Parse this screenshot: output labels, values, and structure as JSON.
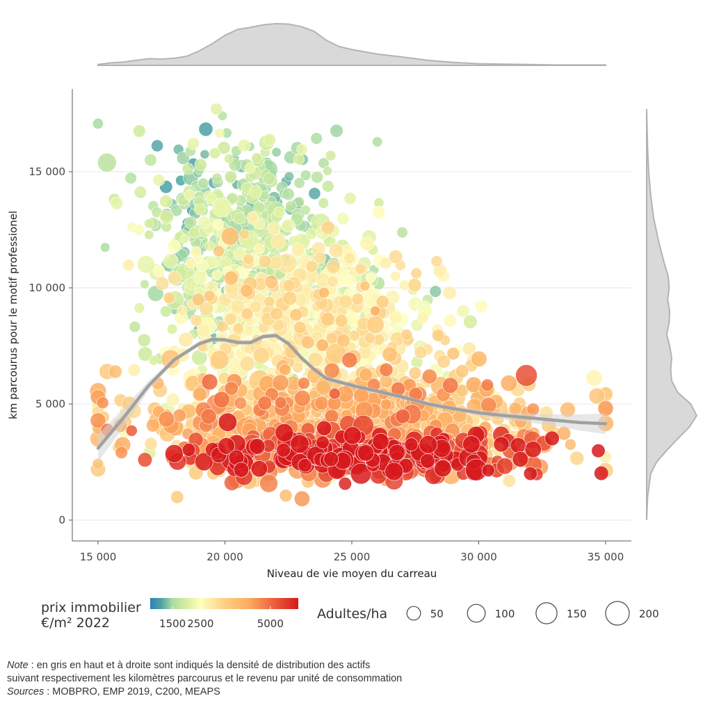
{
  "chart_data": {
    "type": "scatter",
    "xlabel": "Niveau de vie moyen du carreau",
    "ylabel": "km parcourus pour le motif professionel",
    "xlim": [
      14000,
      36000
    ],
    "ylim": [
      -900,
      18500
    ],
    "x_ticks": [
      15000,
      20000,
      25000,
      30000,
      35000
    ],
    "x_tick_labels": [
      "15 000",
      "20 000",
      "25 000",
      "30 000",
      "35 000"
    ],
    "y_ticks": [
      0,
      5000,
      10000,
      15000
    ],
    "y_tick_labels": [
      "0",
      "5 000",
      "10 000",
      "15 000"
    ],
    "grid": "horizontal",
    "point_distribution": [
      {
        "center_x": 20500,
        "center_y": 12000,
        "spread_x": 1800,
        "spread_y": 2200,
        "count": 520,
        "price_mean": 1700,
        "density_mean": 30
      },
      {
        "center_x": 23000,
        "center_y": 8500,
        "spread_x": 2500,
        "spread_y": 1800,
        "count": 700,
        "price_mean": 2600,
        "density_mean": 40
      },
      {
        "center_x": 24500,
        "center_y": 4200,
        "spread_x": 4000,
        "spread_y": 1000,
        "count": 900,
        "price_mean": 3600,
        "density_mean": 55
      },
      {
        "center_x": 25500,
        "center_y": 2800,
        "spread_x": 3500,
        "spread_y": 500,
        "count": 300,
        "price_mean": 5500,
        "density_mean": 75
      }
    ],
    "smooth_trend": {
      "x": [
        15000,
        16000,
        17000,
        18000,
        19000,
        19500,
        20000,
        20500,
        21000,
        21500,
        22000,
        22500,
        23000,
        23500,
        24000,
        25000,
        26000,
        27000,
        28000,
        29000,
        30000,
        31000,
        32000,
        33000,
        34000,
        35000
      ],
      "y": [
        3100,
        4400,
        5800,
        6900,
        7600,
        7780,
        7760,
        7650,
        7640,
        7900,
        7950,
        7600,
        7000,
        6500,
        6100,
        5800,
        5550,
        5300,
        5000,
        4800,
        4620,
        4500,
        4400,
        4300,
        4200,
        4150
      ],
      "ci_lower": [
        2500,
        4000,
        5600,
        6800,
        7500,
        7680,
        7660,
        7550,
        7540,
        7800,
        7850,
        7500,
        6900,
        6400,
        6000,
        5700,
        5450,
        5200,
        4900,
        4700,
        4500,
        4350,
        4200,
        4050,
        3850,
        3700
      ],
      "ci_upper": [
        3700,
        4800,
        6000,
        7000,
        7700,
        7880,
        7860,
        7750,
        7740,
        8000,
        8050,
        7700,
        7100,
        6600,
        6200,
        5900,
        5650,
        5400,
        5100,
        4900,
        4750,
        4650,
        4600,
        4550,
        4550,
        4600
      ]
    },
    "top_density": {
      "x": [
        15000,
        15500,
        16000,
        16500,
        17000,
        17500,
        18000,
        18500,
        19000,
        19500,
        20000,
        20500,
        21000,
        21500,
        22000,
        22500,
        23000,
        23500,
        24000,
        24500,
        25000,
        26000,
        27000,
        28000,
        29000,
        30000,
        31000,
        32000,
        33000,
        35000
      ],
      "y": [
        0.02,
        0.06,
        0.08,
        0.12,
        0.16,
        0.15,
        0.17,
        0.22,
        0.35,
        0.52,
        0.72,
        0.86,
        0.91,
        0.97,
        1.0,
        0.99,
        0.93,
        0.82,
        0.6,
        0.45,
        0.38,
        0.27,
        0.2,
        0.12,
        0.07,
        0.04,
        0.03,
        0.02,
        0.01,
        0.01
      ]
    },
    "right_density": {
      "y": [
        0,
        1000,
        2000,
        2500,
        3000,
        3500,
        4000,
        4500,
        5000,
        5500,
        6000,
        6500,
        7000,
        7500,
        8000,
        8500,
        9000,
        9500,
        10000,
        10500,
        11000,
        12000,
        13000,
        14000,
        15000,
        16000,
        17700
      ],
      "x": [
        0.0,
        0.02,
        0.08,
        0.2,
        0.4,
        0.62,
        0.85,
        1.0,
        0.88,
        0.62,
        0.5,
        0.48,
        0.5,
        0.46,
        0.4,
        0.45,
        0.46,
        0.42,
        0.45,
        0.43,
        0.36,
        0.24,
        0.14,
        0.08,
        0.04,
        0.02,
        0.0
      ]
    }
  },
  "legend": {
    "color_title_line1": "prix immobilier",
    "color_title_line2": "€/m² 2022",
    "color_ticks": [
      {
        "value": 1500,
        "label": "1500"
      },
      {
        "value": 2500,
        "label": "2500"
      },
      {
        "value": 5000,
        "label": "5000"
      }
    ],
    "size_title": "Adultes/ha",
    "size_items": [
      {
        "value": 50,
        "label": "50"
      },
      {
        "value": 100,
        "label": "100"
      },
      {
        "value": 150,
        "label": "150"
      },
      {
        "value": 200,
        "label": "200"
      }
    ]
  },
  "colors": {
    "palette": [
      "#2b83ba",
      "#4fa3a4",
      "#abdda4",
      "#d7ee9c",
      "#ffffbf",
      "#fdd287",
      "#fdae61",
      "#ef6a42",
      "#d7191c"
    ],
    "trend_line": "#a0a0a0",
    "density_fill": "#d9d9d9",
    "density_stroke": "#b3b3b3",
    "grid": "#e6e6e6",
    "axis": "#555555"
  },
  "note": {
    "note_label": "Note",
    "note_text": " : en gris en haut et à droite sont indiqués la densité de distribution des actifs",
    "note_line2": "suivant respectivement les kilomètres parcourus et le revenu par unité de consommation",
    "sources_label": "Sources",
    "sources_text": " : MOBPRO, EMP 2019, C200, MEAPS"
  }
}
